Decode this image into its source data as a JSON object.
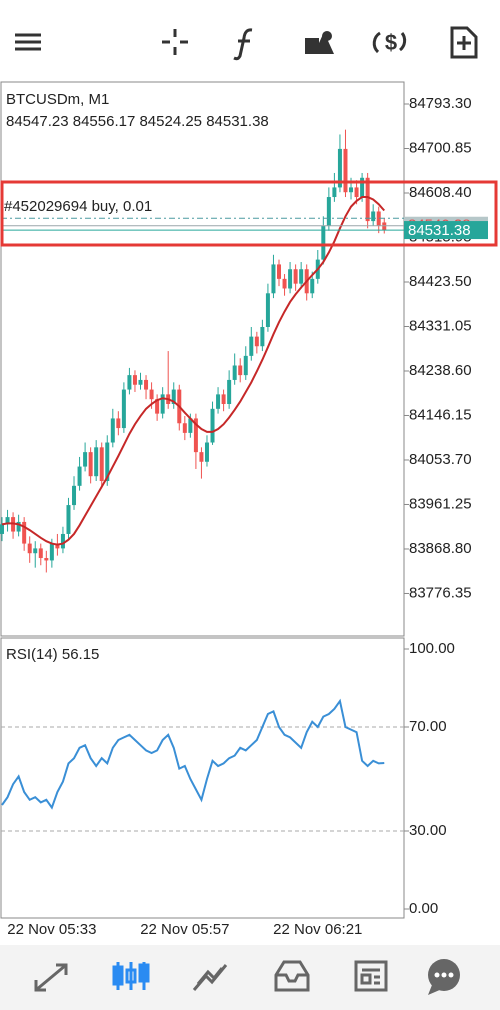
{
  "chart_data": [
    {
      "type": "candlestick",
      "title": "BTCUSDm, M1",
      "subtitle": "84547.23 84556.17 84524.25 84531.38",
      "annotation": "#452029694 buy, 0.01",
      "order_price": 84556,
      "ask": 84540.38,
      "bid": 84531.38,
      "up_color": "#26a69a",
      "down_color": "#ef5350",
      "ylim": [
        83688,
        84839
      ],
      "yticks": [
        {
          "value": 84793.3,
          "label": "84793.30"
        },
        84700.85,
        {
          "value": 84608.4,
          "label": "84608.40"
        },
        84515.95,
        {
          "value": 84423.5,
          "label": "84423.50"
        },
        84331.05,
        {
          "value": 84238.6,
          "label": "84238.60"
        },
        84146.15,
        {
          "value": 84053.7,
          "label": "84053.70"
        },
        83961.25,
        {
          "value": 83868.8,
          "label": "83868.80"
        },
        83776.35
      ],
      "categories": [
        null,
        null,
        null,
        null,
        null,
        null,
        null,
        null,
        null,
        "22 Nov 05:33",
        null,
        null,
        null,
        null,
        null,
        null,
        null,
        null,
        null,
        null,
        null,
        null,
        null,
        null,
        null,
        null,
        null,
        null,
        null,
        null,
        null,
        null,
        null,
        "22 Nov 05:57",
        null,
        null,
        null,
        null,
        null,
        null,
        null,
        null,
        null,
        null,
        null,
        null,
        null,
        null,
        null,
        null,
        null,
        null,
        null,
        null,
        null,
        null,
        null,
        "22 Nov 06:21",
        null,
        null,
        null,
        null,
        null,
        null,
        null,
        null,
        null,
        null,
        null,
        null
      ],
      "open": [
        83900,
        83920,
        83935,
        83905,
        83925,
        83880,
        83860,
        83870,
        83850,
        83845,
        83880,
        83870,
        83900,
        83960,
        84000,
        84040,
        84070,
        84020,
        84080,
        84010,
        84090,
        84140,
        84120,
        84200,
        84230,
        84210,
        84220,
        84200,
        84180,
        84150,
        84190,
        84170,
        84200,
        84130,
        84110,
        84140,
        84070,
        84050,
        84090,
        84160,
        84190,
        84170,
        84220,
        84250,
        84230,
        84270,
        84310,
        84290,
        84330,
        84400,
        84460,
        84430,
        84410,
        84450,
        84420,
        84450,
        84400,
        84430,
        84470,
        84540,
        84600,
        84620,
        84700,
        84610,
        84620,
        84600,
        84640,
        84550,
        84570,
        84547.23
      ],
      "high": [
        83935,
        83950,
        83945,
        83940,
        83935,
        83895,
        83885,
        83880,
        83865,
        83890,
        83900,
        83915,
        83975,
        84020,
        84060,
        84090,
        84080,
        84095,
        84090,
        84105,
        84160,
        84155,
        84215,
        84245,
        84240,
        84235,
        84230,
        84215,
        84190,
        84205,
        84280,
        84215,
        84210,
        84145,
        84150,
        84150,
        84080,
        84105,
        84175,
        84205,
        84200,
        84240,
        84275,
        84265,
        84290,
        84330,
        84320,
        84345,
        84420,
        84480,
        84470,
        84440,
        84465,
        84460,
        84465,
        84460,
        84445,
        84490,
        84560,
        84620,
        84650,
        84730,
        84740,
        84640,
        84635,
        84650,
        84650,
        84585,
        84580,
        84556.17
      ],
      "low": [
        83885,
        83905,
        83890,
        83895,
        83865,
        83840,
        83830,
        83835,
        83820,
        83830,
        83855,
        83860,
        83890,
        83950,
        83990,
        84030,
        84005,
        84010,
        83995,
        84000,
        84080,
        84105,
        84110,
        84190,
        84195,
        84200,
        84180,
        84160,
        84135,
        84140,
        84160,
        84160,
        84115,
        84095,
        84100,
        84035,
        84015,
        84040,
        84085,
        84150,
        84155,
        84160,
        84210,
        84215,
        84220,
        84260,
        84275,
        84280,
        84320,
        84390,
        84415,
        84395,
        84400,
        84405,
        84410,
        84385,
        84390,
        84420,
        84460,
        84530,
        84590,
        84610,
        84600,
        84595,
        84585,
        84590,
        84535,
        84540,
        84525,
        84524.25
      ],
      "close": [
        83920,
        83935,
        83905,
        83925,
        83880,
        83860,
        83870,
        83850,
        83845,
        83880,
        83870,
        83900,
        83960,
        84000,
        84040,
        84070,
        84020,
        84080,
        84010,
        84090,
        84140,
        84120,
        84200,
        84230,
        84210,
        84220,
        84200,
        84180,
        84150,
        84190,
        84170,
        84200,
        84130,
        84110,
        84140,
        84070,
        84050,
        84090,
        84160,
        84190,
        84170,
        84220,
        84250,
        84230,
        84270,
        84310,
        84290,
        84330,
        84400,
        84460,
        84430,
        84410,
        84450,
        84420,
        84450,
        84400,
        84430,
        84470,
        84540,
        84600,
        84620,
        84700,
        84610,
        84620,
        84600,
        84640,
        84550,
        84570,
        84540,
        84531.38
      ],
      "moving_average": {
        "color": "#c62828",
        "values": [
          83920,
          83922,
          83922,
          83920,
          83915,
          83908,
          83900,
          83892,
          83885,
          83880,
          83878,
          83880,
          83888,
          83900,
          83918,
          83938,
          83958,
          83978,
          83998,
          84018,
          84040,
          84062,
          84085,
          84108,
          84128,
          84145,
          84160,
          84170,
          84178,
          84182,
          84180,
          84175,
          84165,
          84152,
          84140,
          84128,
          84118,
          84112,
          84112,
          84118,
          84128,
          84142,
          84158,
          84175,
          84195,
          84215,
          84238,
          84262,
          84288,
          84315,
          84340,
          84362,
          84382,
          84398,
          84412,
          84425,
          84438,
          84450,
          84465,
          84485,
          84508,
          84535,
          84560,
          84580,
          84592,
          84600,
          84600,
          84595,
          84585,
          84572
        ]
      }
    },
    {
      "type": "line",
      "title": "RSI(14) 56.15",
      "color": "#3a8fd6",
      "ylim": [
        0,
        100
      ],
      "yticks": [
        {
          "value": 100,
          "label": "100.00"
        },
        {
          "value": 70,
          "label": "70.00"
        },
        {
          "value": 30,
          "label": "30.00"
        },
        {
          "value": 0,
          "label": "0.00"
        }
      ],
      "values": [
        40,
        43,
        48,
        51,
        45,
        42,
        43,
        41,
        42,
        39,
        45,
        49,
        56,
        58,
        62,
        63,
        58,
        55,
        58,
        56,
        62,
        65,
        66,
        67,
        65,
        63,
        61,
        60,
        61,
        65,
        67,
        62,
        54,
        55,
        50,
        46,
        42,
        50,
        57,
        55,
        56,
        58,
        59,
        62,
        61,
        63,
        65,
        70,
        75,
        76,
        70,
        67,
        66,
        64,
        62,
        68,
        72,
        70,
        74,
        75,
        77,
        80,
        70,
        69,
        68,
        57,
        55,
        57,
        56,
        56.15
      ]
    }
  ]
}
